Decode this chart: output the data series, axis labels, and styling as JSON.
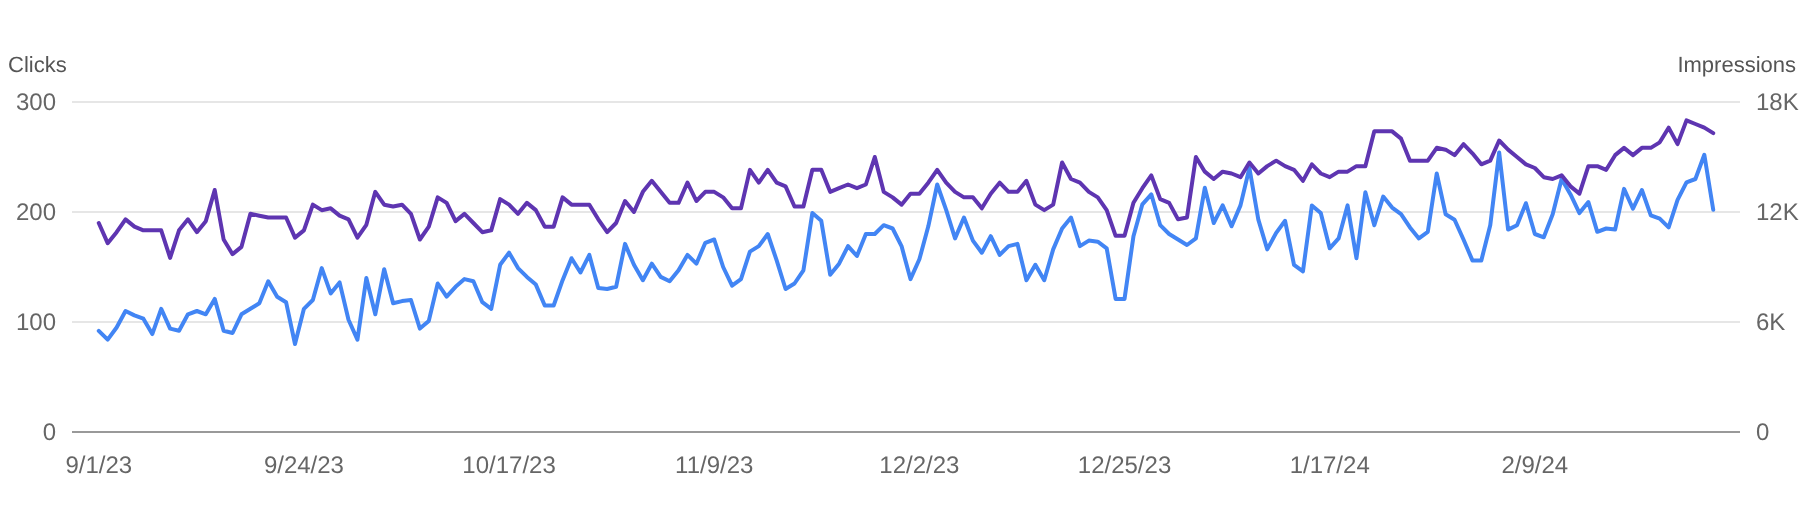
{
  "chart_data": {
    "type": "line",
    "ylabel": "Clicks",
    "y2label": "Impressions",
    "grid": "y",
    "line_style": "solid",
    "x": [
      "2023-09-01",
      "2023-09-02",
      "2023-09-03",
      "2023-09-04",
      "2023-09-05",
      "2023-09-06",
      "2023-09-07",
      "2023-09-08",
      "2023-09-09",
      "2023-09-10",
      "2023-09-11",
      "2023-09-12",
      "2023-09-13",
      "2023-09-14",
      "2023-09-15",
      "2023-09-16",
      "2023-09-17",
      "2023-09-18",
      "2023-09-19",
      "2023-09-20",
      "2023-09-21",
      "2023-09-22",
      "2023-09-23",
      "2023-09-24",
      "2023-09-25",
      "2023-09-26",
      "2023-09-27",
      "2023-09-28",
      "2023-09-29",
      "2023-09-30",
      "2023-10-01",
      "2023-10-02",
      "2023-10-03",
      "2023-10-04",
      "2023-10-05",
      "2023-10-06",
      "2023-10-07",
      "2023-10-08",
      "2023-10-09",
      "2023-10-10",
      "2023-10-11",
      "2023-10-12",
      "2023-10-13",
      "2023-10-14",
      "2023-10-15",
      "2023-10-16",
      "2023-10-17",
      "2023-10-18",
      "2023-10-19",
      "2023-10-20",
      "2023-10-21",
      "2023-10-22",
      "2023-10-23",
      "2023-10-24",
      "2023-10-25",
      "2023-10-26",
      "2023-10-27",
      "2023-10-28",
      "2023-10-29",
      "2023-10-30",
      "2023-10-31",
      "2023-11-01",
      "2023-11-02",
      "2023-11-03",
      "2023-11-04",
      "2023-11-05",
      "2023-11-06",
      "2023-11-07",
      "2023-11-08",
      "2023-11-09",
      "2023-11-10",
      "2023-11-11",
      "2023-11-12",
      "2023-11-13",
      "2023-11-14",
      "2023-11-15",
      "2023-11-16",
      "2023-11-17",
      "2023-11-18",
      "2023-11-19",
      "2023-11-20",
      "2023-11-21",
      "2023-11-22",
      "2023-11-23",
      "2023-11-24",
      "2023-11-25",
      "2023-11-26",
      "2023-11-27",
      "2023-11-28",
      "2023-11-29",
      "2023-11-30",
      "2023-12-01",
      "2023-12-02",
      "2023-12-03",
      "2023-12-04",
      "2023-12-05",
      "2023-12-06",
      "2023-12-07",
      "2023-12-08",
      "2023-12-09",
      "2023-12-10",
      "2023-12-11",
      "2023-12-12",
      "2023-12-13",
      "2023-12-14",
      "2023-12-15",
      "2023-12-16",
      "2023-12-17",
      "2023-12-18",
      "2023-12-19",
      "2023-12-20",
      "2023-12-21",
      "2023-12-22",
      "2023-12-23",
      "2023-12-24",
      "2023-12-25",
      "2023-12-26",
      "2023-12-27",
      "2023-12-28",
      "2023-12-29",
      "2023-12-30",
      "2023-12-31",
      "2024-01-01",
      "2024-01-02",
      "2024-01-03",
      "2024-01-04",
      "2024-01-05",
      "2024-01-06",
      "2024-01-07",
      "2024-01-08",
      "2024-01-09",
      "2024-01-10",
      "2024-01-11",
      "2024-01-12",
      "2024-01-13",
      "2024-01-14",
      "2024-01-15",
      "2024-01-16",
      "2024-01-17",
      "2024-01-18",
      "2024-01-19",
      "2024-01-20",
      "2024-01-21",
      "2024-01-22",
      "2024-01-23",
      "2024-01-24",
      "2024-01-25",
      "2024-01-26",
      "2024-01-27",
      "2024-01-28",
      "2024-01-29",
      "2024-01-30",
      "2024-01-31",
      "2024-02-01",
      "2024-02-02",
      "2024-02-03",
      "2024-02-04",
      "2024-02-05",
      "2024-02-06",
      "2024-02-07",
      "2024-02-08",
      "2024-02-09",
      "2024-02-10",
      "2024-02-11",
      "2024-02-12",
      "2024-02-13",
      "2024-02-14",
      "2024-02-15",
      "2024-02-16",
      "2024-02-17",
      "2024-02-18",
      "2024-02-19",
      "2024-02-20",
      "2024-02-21",
      "2024-02-22",
      "2024-02-23",
      "2024-02-24",
      "2024-02-25",
      "2024-02-26",
      "2024-02-27",
      "2024-02-28",
      "2024-02-29"
    ],
    "xlim": [
      "2023-08-29",
      "2024-03-03"
    ],
    "xticks": [
      {
        "value": "2023-09-01",
        "label": "9/1/23"
      },
      {
        "value": "2023-09-24",
        "label": "9/24/23"
      },
      {
        "value": "2023-10-17",
        "label": "10/17/23"
      },
      {
        "value": "2023-11-09",
        "label": "11/9/23"
      },
      {
        "value": "2023-12-02",
        "label": "12/2/23"
      },
      {
        "value": "2023-12-25",
        "label": "12/25/23"
      },
      {
        "value": "2024-01-17",
        "label": "1/17/24"
      },
      {
        "value": "2024-02-09",
        "label": "2/9/24"
      }
    ],
    "ylim": [
      0,
      300
    ],
    "yticks": [
      0,
      100,
      200,
      300
    ],
    "y2lim": [
      0,
      18000
    ],
    "y2ticks": [
      0,
      {
        "value": 6000,
        "label": "6K"
      },
      {
        "value": 12000,
        "label": "12K"
      },
      {
        "value": 18000,
        "label": "18K"
      }
    ],
    "series": [
      {
        "color": "#4285f4",
        "values": [
          92,
          84,
          95,
          110,
          106,
          103,
          89,
          112,
          94,
          92,
          107,
          110,
          107,
          121,
          92,
          90,
          107,
          112,
          117,
          137,
          123,
          118,
          80,
          112,
          120,
          149,
          126,
          136,
          102,
          84,
          140,
          107,
          148,
          117,
          119,
          120,
          94,
          101,
          135,
          123,
          132,
          139,
          137,
          118,
          112,
          152,
          163,
          149,
          141,
          134,
          115,
          115,
          138,
          158,
          145,
          161,
          131,
          130,
          132,
          171,
          152,
          138,
          153,
          141,
          137,
          147,
          161,
          153,
          172,
          175,
          150,
          133,
          139,
          164,
          169,
          180,
          156,
          130,
          135,
          147,
          199,
          192,
          143,
          153,
          169,
          160,
          180,
          180,
          188,
          185,
          169,
          139,
          157,
          187,
          225,
          202,
          176,
          195,
          174,
          163,
          178,
          161,
          169,
          171,
          138,
          152,
          138,
          166,
          185,
          195,
          169,
          174,
          173,
          167,
          121,
          121,
          178,
          207,
          216,
          188,
          180,
          175,
          170,
          176,
          222,
          190,
          206,
          187,
          206,
          240,
          193,
          166,
          181,
          192,
          152,
          146,
          206,
          199,
          167,
          176,
          206,
          158,
          218,
          188,
          214,
          204,
          198,
          186,
          176,
          182,
          235,
          198,
          193,
          175,
          156,
          156,
          188,
          254,
          184,
          188,
          208,
          180,
          177,
          198,
          230,
          216,
          199,
          209,
          182,
          185,
          184,
          221,
          203,
          220,
          197,
          194,
          186,
          211,
          227,
          230,
          252,
          202
        ]
      },
      {
        "color": "#5e35b1",
        "axis": "y2",
        "values": [
          11400,
          10300,
          10900,
          11600,
          11200,
          11000,
          11000,
          11000,
          9500,
          11000,
          11600,
          10900,
          11500,
          13200,
          10500,
          9700,
          10100,
          11900,
          11800,
          11700,
          11700,
          11700,
          10600,
          11000,
          12400,
          12100,
          12200,
          11800,
          11600,
          10600,
          11300,
          13100,
          12400,
          12300,
          12400,
          11900,
          10500,
          11200,
          12800,
          12500,
          11500,
          11900,
          11400,
          10900,
          11000,
          12700,
          12400,
          11900,
          12500,
          12100,
          11200,
          11200,
          12800,
          12400,
          12400,
          12400,
          11600,
          10900,
          11400,
          12600,
          12000,
          13100,
          13700,
          13100,
          12500,
          12500,
          13600,
          12600,
          13100,
          13100,
          12800,
          12200,
          12200,
          14300,
          13600,
          14300,
          13600,
          13400,
          12300,
          12300,
          14300,
          14300,
          13100,
          13300,
          13500,
          13300,
          13500,
          15000,
          13100,
          12800,
          12400,
          13000,
          13000,
          13600,
          14300,
          13600,
          13100,
          12800,
          12800,
          12200,
          13000,
          13600,
          13100,
          13100,
          13700,
          12400,
          12100,
          12400,
          14700,
          13800,
          13600,
          13100,
          12800,
          12100,
          10700,
          10700,
          12500,
          13300,
          14000,
          12700,
          12500,
          11600,
          11700,
          15000,
          14200,
          13800,
          14200,
          14100,
          13900,
          14700,
          14100,
          14500,
          14800,
          14500,
          14300,
          13700,
          14600,
          14100,
          13900,
          14200,
          14200,
          14500,
          14500,
          16400,
          16400,
          16400,
          16000,
          14800,
          14800,
          14800,
          15500,
          15400,
          15100,
          15700,
          15200,
          14600,
          14800,
          15900,
          15400,
          15000,
          14600,
          14400,
          13900,
          13800,
          14000,
          13400,
          13000,
          14500,
          14500,
          14300,
          15100,
          15500,
          15100,
          15500,
          15500,
          15800,
          16600,
          15700,
          17000,
          16800,
          16600,
          16300
        ]
      }
    ]
  }
}
